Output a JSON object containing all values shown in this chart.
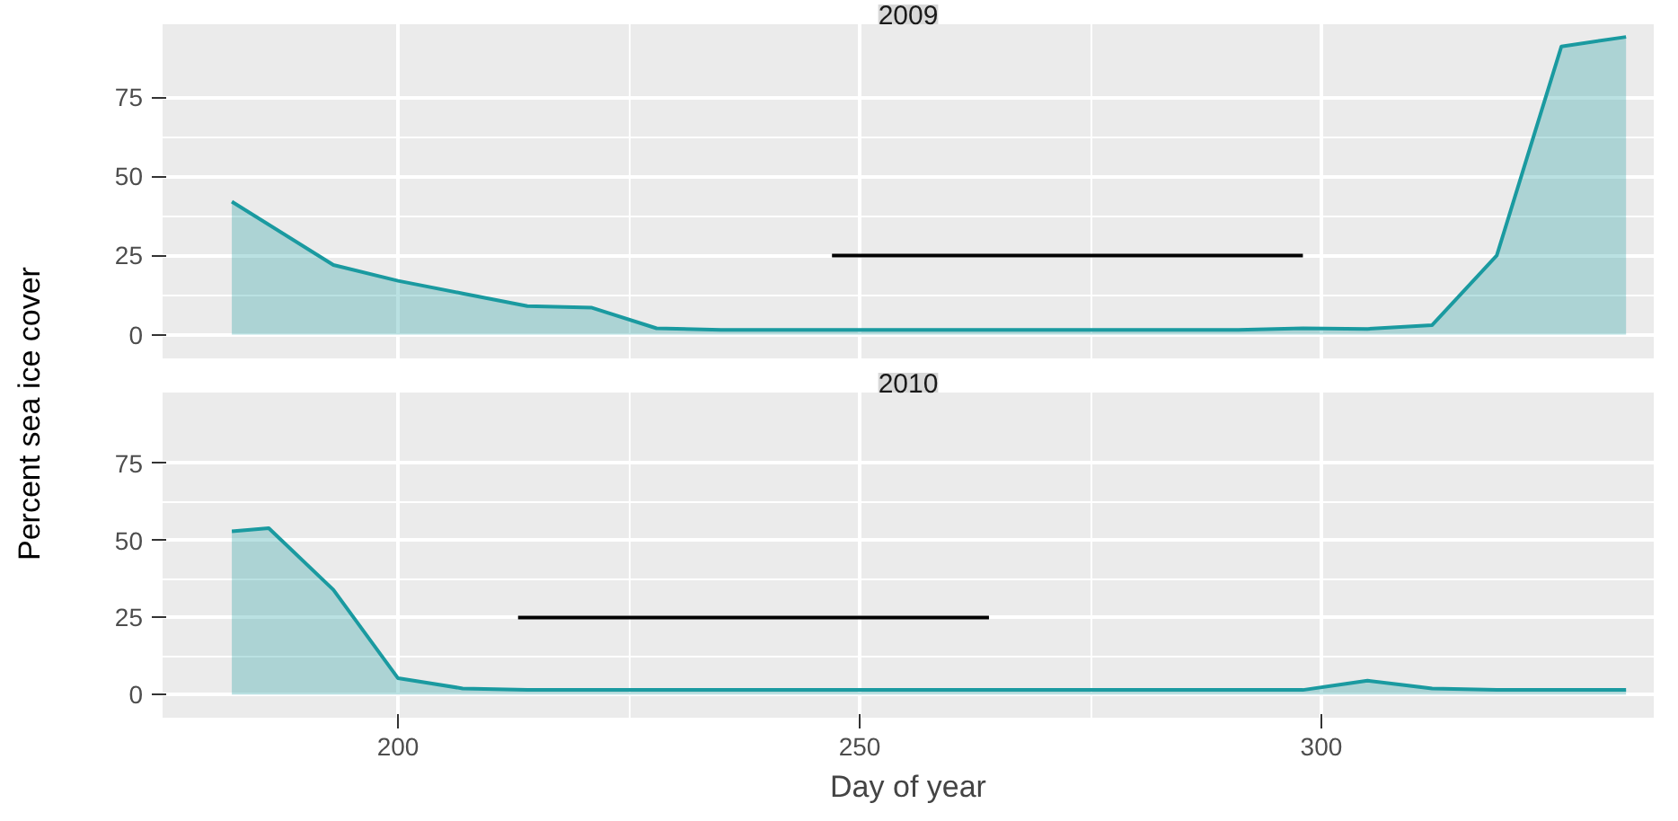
{
  "chart_data": [
    {
      "type": "area",
      "title": "2009",
      "ylabel": "Percent sea ice cover",
      "xlim": [
        174.5,
        336
      ],
      "xticks": [
        200,
        250,
        300
      ],
      "ylim": [
        -7.5,
        98
      ],
      "yticks": [
        0,
        25,
        50,
        75
      ],
      "grid": true,
      "tick_labels": "y",
      "series": [
        {
          "color": "#1a9aa0",
          "x": [
            182,
            193,
            200,
            207,
            214,
            221,
            228,
            235,
            242,
            249,
            256,
            263,
            270,
            277,
            284,
            291,
            298,
            305,
            312,
            319,
            326,
            333
          ],
          "values": [
            42,
            22,
            17,
            13,
            9,
            8.5,
            2,
            1.5,
            1.5,
            1.5,
            1.5,
            1.5,
            1.5,
            1.5,
            1.5,
            1.5,
            2,
            1.8,
            3,
            25,
            91,
            94
          ]
        },
        {
          "type": "line",
          "color": "#000000",
          "x": [
            247,
            298
          ],
          "values": [
            25,
            25
          ]
        }
      ]
    },
    {
      "type": "area",
      "title": "2010",
      "xlabel": "Day of year",
      "xlim": [
        174.5,
        336
      ],
      "xticks": [
        200,
        250,
        300
      ],
      "ylim": [
        -7.5,
        98
      ],
      "yticks": [
        0,
        25,
        50,
        75
      ],
      "grid": true,
      "series": [
        {
          "color": "#1a9aa0",
          "x": [
            182,
            186,
            193,
            200,
            207,
            214,
            221,
            228,
            235,
            242,
            249,
            256,
            263,
            270,
            277,
            284,
            291,
            298,
            305,
            312,
            319,
            326,
            333
          ],
          "values": [
            53,
            54,
            34,
            5.3,
            2,
            1.5,
            1.5,
            1.5,
            1.5,
            1.5,
            1.5,
            1.5,
            1.5,
            1.5,
            1.5,
            1.5,
            1.5,
            1.5,
            4.5,
            2,
            1.5,
            1.5,
            1.5
          ]
        },
        {
          "type": "line",
          "color": "#000000",
          "x": [
            213,
            264
          ],
          "values": [
            25,
            25
          ]
        }
      ]
    }
  ]
}
